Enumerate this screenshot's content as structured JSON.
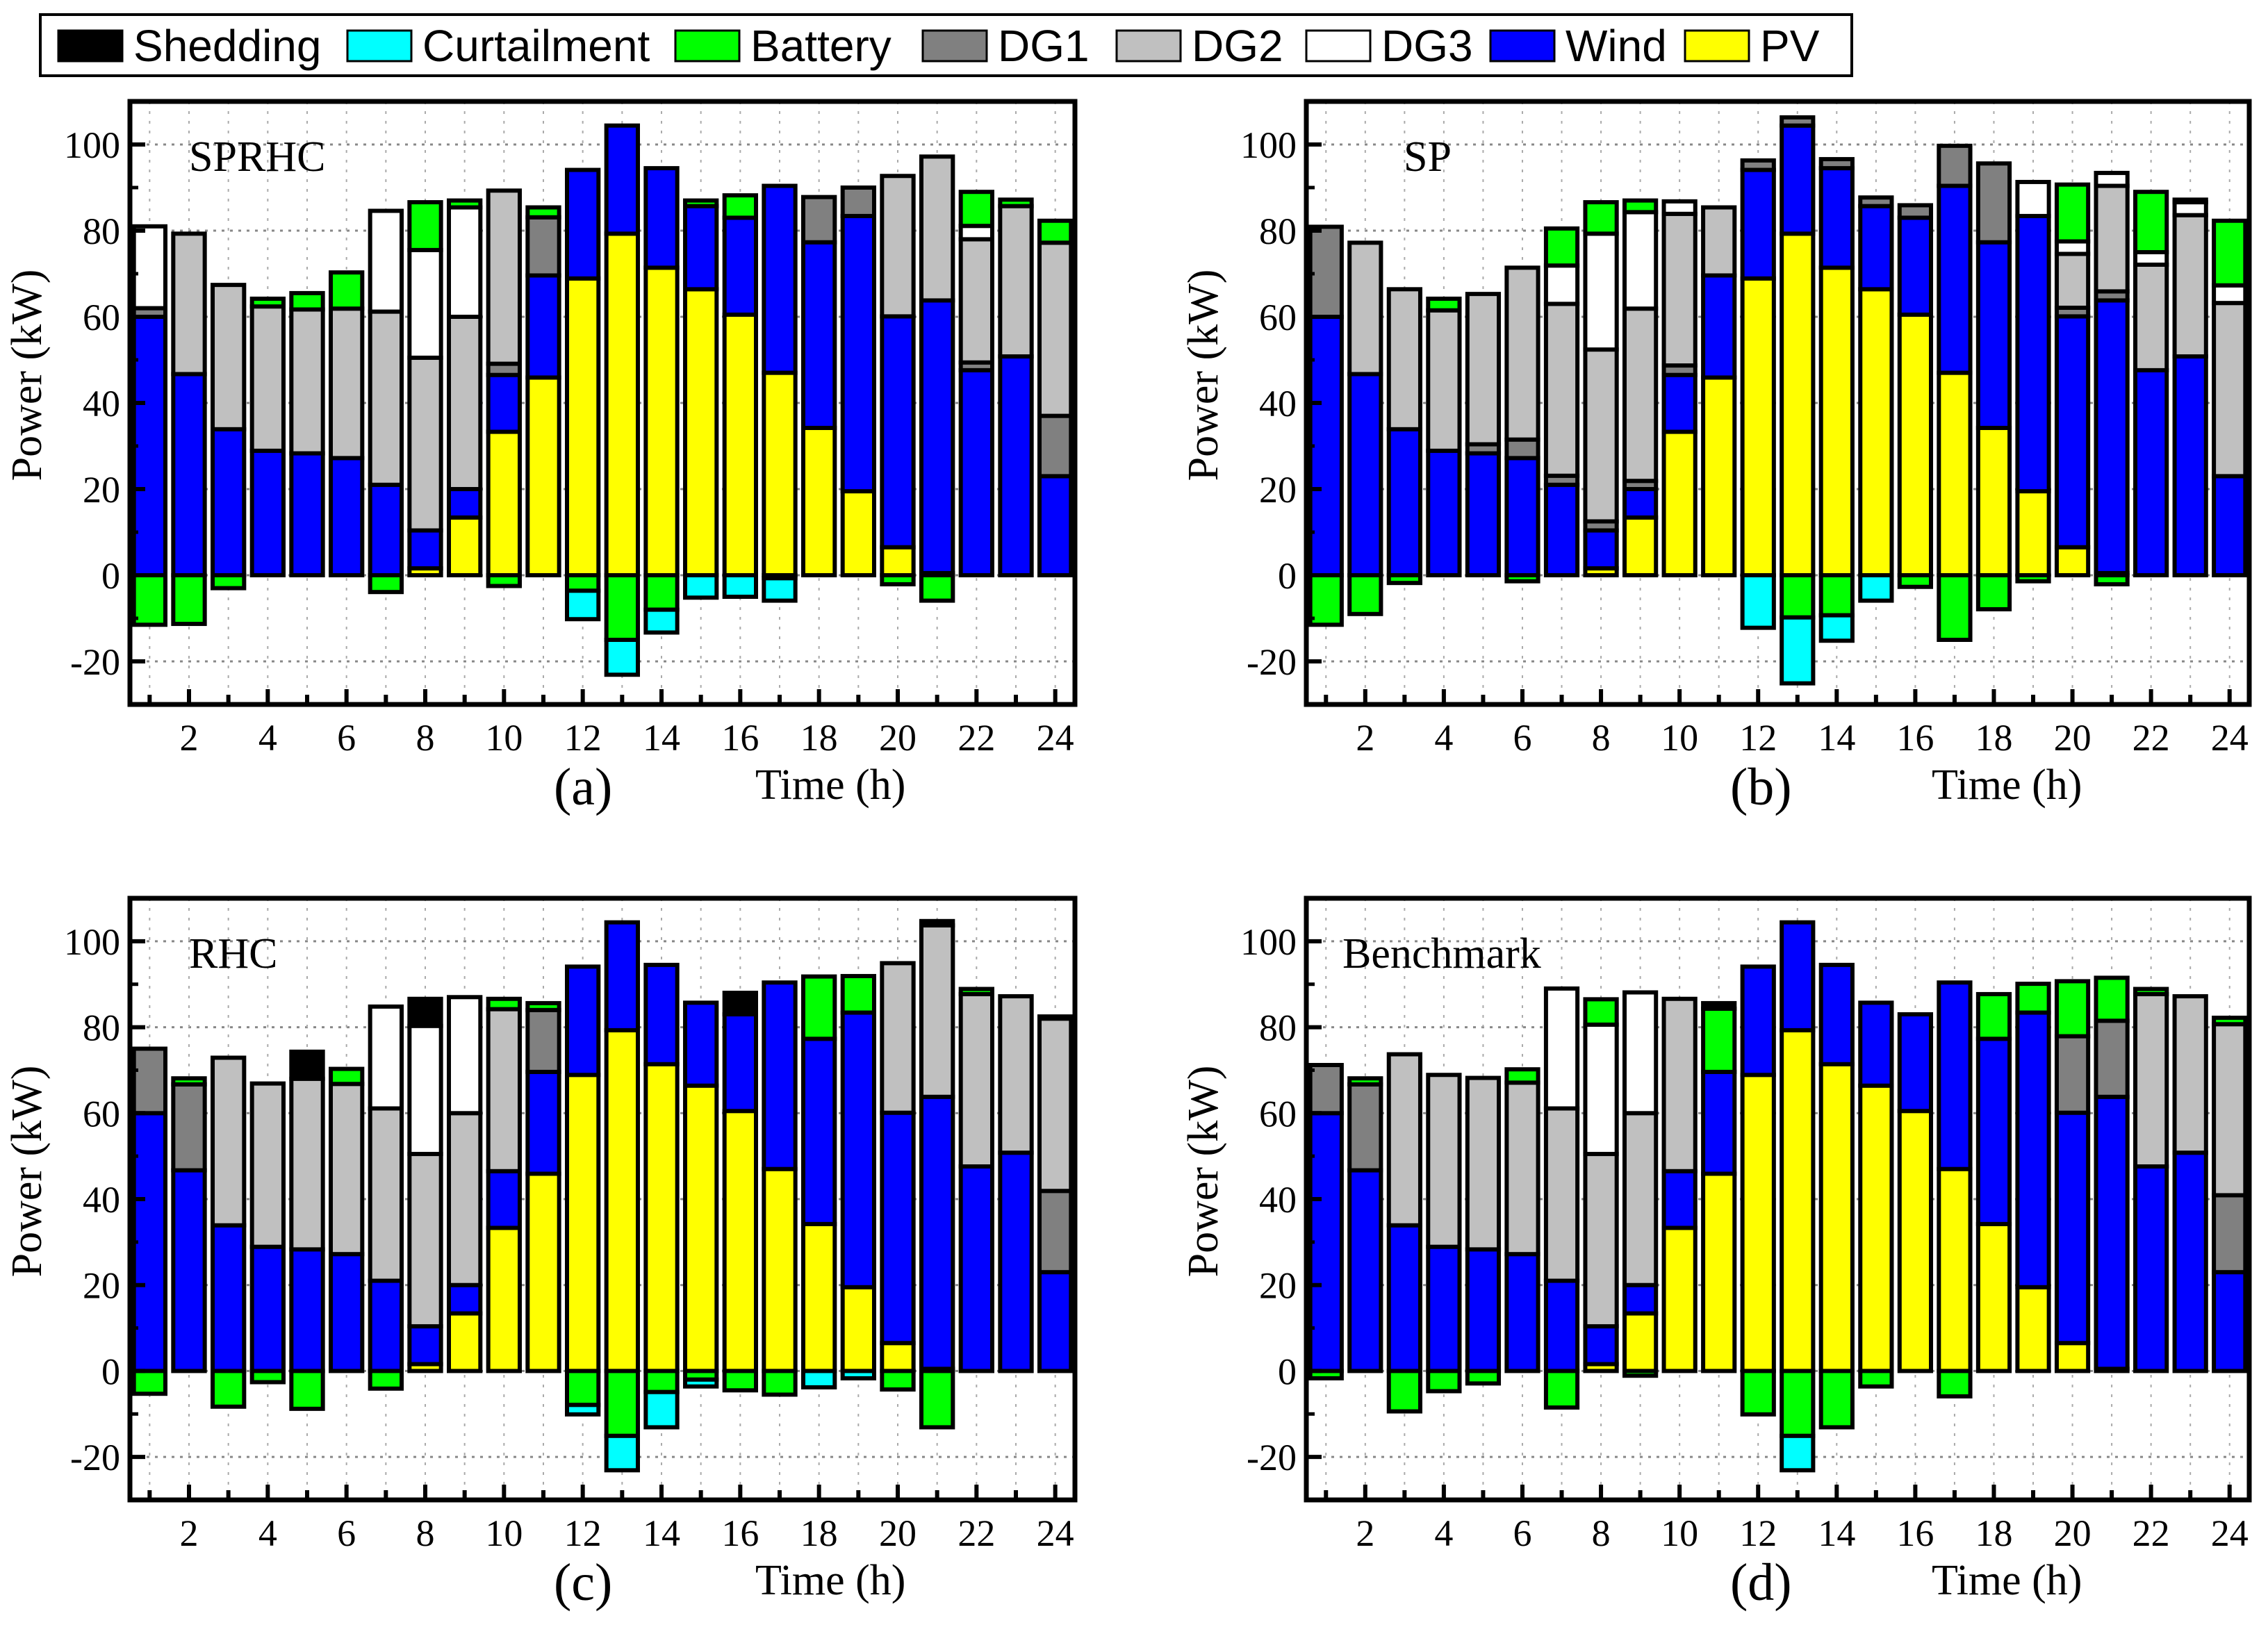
{
  "legend": {
    "items": [
      {
        "label": "Shedding",
        "key": "Shedding"
      },
      {
        "label": "Curtailment",
        "key": "Curtailment"
      },
      {
        "label": "Battery",
        "key": "Battery"
      },
      {
        "label": "DG1",
        "key": "DG1"
      },
      {
        "label": "DG2",
        "key": "DG2"
      },
      {
        "label": "DG3",
        "key": "DG3"
      },
      {
        "label": "Wind",
        "key": "Wind"
      },
      {
        "label": "PV",
        "key": "PV"
      }
    ]
  },
  "colors": {
    "Shedding": "#000000",
    "Curtailment": "#00ffff",
    "Battery": "#00ff00",
    "DG1": "#808080",
    "DG2": "#c0c0c0",
    "DG3": "#ffffff",
    "Wind": "#0000ff",
    "PV": "#ffff00"
  },
  "chart_data": {
    "type": "bar",
    "stacked": true,
    "xlabel": "Time (h)",
    "ylabel": "Power (kW)",
    "xlim": [
      0.5,
      24.5
    ],
    "ylim": [
      -30,
      110
    ],
    "yticks": [
      -20,
      0,
      20,
      40,
      60,
      80,
      100
    ],
    "ytick_labels": [
      "-20",
      "0",
      "20",
      "40",
      "60",
      "80",
      "100"
    ],
    "xticks": [
      2,
      4,
      6,
      8,
      10,
      12,
      14,
      16,
      18,
      20,
      22,
      24
    ],
    "xtick_labels": [
      "2",
      "4",
      "6",
      "8",
      "10",
      "12",
      "14",
      "16",
      "18",
      "20",
      "22",
      "24"
    ],
    "hours": [
      1,
      2,
      3,
      4,
      5,
      6,
      7,
      8,
      9,
      10,
      11,
      12,
      13,
      14,
      15,
      16,
      17,
      18,
      19,
      20,
      21,
      22,
      23,
      24
    ],
    "grid": true,
    "legend_position": "top",
    "common_series": {
      "PV": [
        0,
        0,
        0,
        0,
        0,
        0,
        0,
        1.6,
        13.4,
        33.3,
        45.9,
        68.9,
        79.3,
        71.4,
        66.4,
        60.5,
        47,
        34.2,
        19.5,
        6.5,
        0.5,
        0,
        0,
        0
      ],
      "Wind": [
        60,
        46.7,
        33.9,
        28.9,
        28.3,
        27.2,
        21,
        8.8,
        6.6,
        13.2,
        23.7,
        25.2,
        25.1,
        23.1,
        19.3,
        22.5,
        43.4,
        43.1,
        63.9,
        53.6,
        63.3,
        47.6,
        50.8,
        23
      ]
    },
    "panels": [
      {
        "letter": "(a)",
        "title": "SPRHC",
        "series": {
          "DG1": [
            2,
            0,
            0,
            0,
            0,
            0,
            0,
            0,
            0,
            2.6,
            13.5,
            0,
            0,
            0,
            0,
            0,
            0,
            10.5,
            6.6,
            0,
            0,
            1.8,
            0,
            14
          ],
          "DG2": [
            0,
            32.6,
            33.5,
            33.5,
            33.4,
            34.7,
            40.2,
            40.1,
            40,
            40.2,
            0,
            0,
            0,
            0,
            0,
            0,
            0,
            0,
            0,
            32.6,
            33.4,
            28.6,
            34.9,
            40.2
          ],
          "DG3": [
            19,
            0,
            0,
            0,
            0,
            0,
            23.4,
            25,
            25.4,
            0,
            0,
            0,
            0,
            0,
            0,
            0,
            0,
            0,
            0,
            0,
            0,
            3.1,
            0,
            0
          ],
          "Battery": [
            -11.5,
            -11.3,
            -3,
            1.8,
            3.8,
            8.4,
            -3.9,
            11.1,
            1.6,
            -2.5,
            2.3,
            -3.6,
            -15,
            -8,
            1.3,
            5.2,
            -0.7,
            0,
            0,
            -2.1,
            -5.9,
            7.9,
            1.5,
            5.1
          ],
          "Curtailment": [
            0,
            0,
            0,
            0,
            0,
            0,
            0,
            0,
            0,
            0,
            0,
            -6.6,
            -8.1,
            -5.3,
            -5.2,
            -5,
            -5.2,
            0,
            0,
            0,
            0,
            0,
            0,
            0
          ],
          "Shedding": [
            0,
            0,
            0,
            0,
            0,
            0,
            0,
            0,
            0,
            0,
            0,
            0,
            0,
            0,
            0,
            0,
            0,
            0,
            0,
            0,
            0,
            0,
            0,
            0
          ]
        }
      },
      {
        "letter": "(b)",
        "title": "SP",
        "series": {
          "DG1": [
            20.9,
            0,
            0,
            0,
            2.1,
            4.3,
            2.1,
            2.1,
            1.9,
            2.2,
            0,
            2.2,
            1.9,
            2.1,
            2,
            2.9,
            9.3,
            18.3,
            0,
            2,
            2.1,
            0,
            0,
            0
          ],
          "DG2": [
            0,
            30.5,
            32.5,
            32.6,
            34.9,
            39.9,
            39.9,
            39.9,
            40,
            35.2,
            15.8,
            0,
            0,
            0,
            0,
            0,
            0,
            0,
            0,
            12.5,
            24.5,
            24.5,
            32.8,
            40.2
          ],
          "DG3": [
            0,
            0,
            0,
            0,
            0,
            0,
            8.9,
            26.9,
            22.4,
            2.9,
            0,
            0,
            0,
            0,
            0,
            0,
            0,
            0,
            7.9,
            2.9,
            3,
            2.9,
            3,
            4.1
          ],
          "Battery": [
            -11.5,
            -9,
            -1.8,
            2.7,
            0,
            -1.4,
            8.6,
            7.3,
            2.7,
            0,
            0,
            0,
            -9.8,
            -9.3,
            0,
            -2.7,
            -15,
            -7.9,
            -1.4,
            13.2,
            -2.1,
            14,
            0,
            15
          ],
          "Curtailment": [
            0,
            0,
            0,
            0,
            0,
            0,
            0,
            0,
            0,
            0,
            0,
            -12.2,
            -15.3,
            -5.9,
            -5.9,
            0,
            0,
            0,
            0,
            0,
            0,
            0,
            0,
            0
          ],
          "Shedding": [
            0,
            0,
            0,
            0,
            0,
            0,
            0,
            0,
            0,
            0,
            0,
            0,
            0,
            0,
            0,
            0,
            0,
            0,
            0,
            0,
            0,
            0,
            0.6,
            0
          ]
        }
      },
      {
        "letter": "(c)",
        "title": "RHC",
        "series": {
          "DG1": [
            15,
            20,
            0,
            0,
            0,
            0,
            0,
            0,
            0,
            0,
            14.4,
            0,
            0,
            0,
            0,
            0,
            0,
            0,
            0,
            0,
            0,
            0,
            0,
            18.9
          ],
          "DG2": [
            0,
            0,
            39,
            38,
            39.7,
            39.6,
            40.1,
            40.1,
            40,
            37.7,
            0,
            0,
            0,
            0,
            0,
            0,
            0,
            0,
            0,
            34.8,
            39.9,
            40.1,
            36.4,
            40.1
          ],
          "DG3": [
            0,
            0,
            0,
            0,
            0,
            0,
            23.7,
            29.8,
            27,
            0,
            0,
            0,
            0,
            0,
            0,
            0,
            0,
            0,
            0,
            0,
            0,
            0,
            0,
            0
          ],
          "Battery": [
            -5.3,
            1.4,
            -8.3,
            -2.6,
            -8.8,
            3.5,
            -4.1,
            0,
            0,
            2.4,
            1.6,
            -7.9,
            -15.1,
            -4.9,
            -2,
            -4.5,
            -5.5,
            14.5,
            8.5,
            -4.3,
            -13.1,
            1.2,
            0,
            0
          ],
          "Curtailment": [
            0,
            0,
            0,
            0,
            0,
            0,
            0,
            0,
            0,
            0,
            0,
            -2.2,
            -8,
            -8.2,
            -1.6,
            0,
            0,
            -3.8,
            -1.7,
            0,
            0,
            0,
            0,
            0
          ],
          "Shedding": [
            0,
            0,
            0,
            0,
            6.3,
            0,
            0,
            6.3,
            0,
            0,
            0,
            0,
            0,
            0,
            0,
            5,
            0,
            0,
            0,
            0,
            1,
            0,
            0,
            0.5
          ]
        }
      },
      {
        "letter": "(d)",
        "title": "Benchmark",
        "series": {
          "DG1": [
            11.2,
            20,
            0,
            0,
            0,
            0,
            0,
            0,
            0,
            0,
            0,
            0,
            0,
            0,
            0,
            0,
            0,
            0,
            0,
            17.8,
            17.7,
            0,
            0,
            17.9
          ],
          "DG2": [
            0,
            0,
            39.8,
            40,
            39.9,
            39.9,
            40.1,
            40.1,
            40,
            40.1,
            0,
            0,
            0,
            0,
            0,
            0,
            0,
            0,
            0,
            0,
            0,
            40.1,
            36.4,
            39.8
          ],
          "DG3": [
            0,
            0,
            0,
            0,
            0,
            0,
            27.9,
            30.1,
            28.1,
            0,
            0,
            0,
            0,
            0,
            0,
            0,
            0,
            0,
            0,
            0,
            0,
            0,
            0,
            0
          ],
          "Battery": [
            -1.7,
            1.4,
            -9.4,
            -4.7,
            -2.9,
            3.1,
            -8.5,
            5.9,
            -1.1,
            0,
            14.7,
            -10.1,
            -15.1,
            -13.1,
            -3.6,
            0,
            -5.9,
            10.4,
            6.7,
            12.8,
            10,
            1.2,
            0,
            1.5
          ],
          "Curtailment": [
            0,
            0,
            0,
            0,
            0,
            0,
            0,
            0,
            0,
            0,
            0,
            0,
            -8,
            0,
            0,
            0,
            0,
            0,
            0,
            0,
            0,
            0,
            0,
            0
          ],
          "Shedding": [
            0,
            0,
            0,
            0,
            0,
            0,
            0,
            0,
            0,
            0,
            1.3,
            0,
            0,
            0,
            0,
            0,
            0,
            0,
            0,
            0,
            0,
            0,
            0,
            0
          ]
        }
      }
    ]
  }
}
